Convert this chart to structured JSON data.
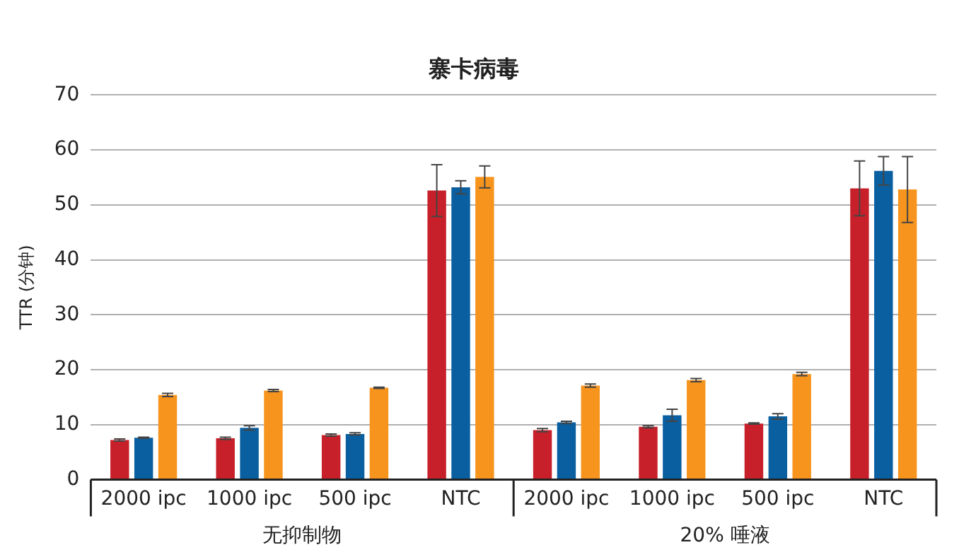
{
  "chart_data": {
    "type": "bar",
    "title": "寨卡病毒",
    "ylabel": "TTR (分钟)",
    "categories": [
      "2000 ipc",
      "1000 ipc",
      "500 ipc",
      "NTC",
      "2000 ipc",
      "1000 ipc",
      "500 ipc",
      "NTC"
    ],
    "series": [
      {
        "color": "#c8202a",
        "values": [
          7.2,
          7.5,
          8.1,
          52.6,
          9.0,
          9.6,
          10.2,
          53.0
        ],
        "errors": [
          0.2,
          0.2,
          0.2,
          4.7,
          0.3,
          0.2,
          0.1,
          5.0
        ]
      },
      {
        "color": "#0a5fa0",
        "values": [
          7.6,
          9.4,
          8.3,
          53.2,
          10.4,
          11.7,
          11.5,
          56.2
        ],
        "errors": [
          0.1,
          0.4,
          0.2,
          1.2,
          0.2,
          1.1,
          0.5,
          2.6
        ]
      },
      {
        "color": "#f7941d",
        "values": [
          15.4,
          16.2,
          16.7,
          55.1,
          17.1,
          18.1,
          19.2,
          52.8
        ],
        "errors": [
          0.3,
          0.2,
          0.1,
          2.0,
          0.3,
          0.3,
          0.3,
          6.0
        ]
      }
    ],
    "ylim": [
      0,
      70
    ],
    "yticks": [
      0,
      10,
      20,
      30,
      40,
      50,
      60,
      70
    ],
    "grid": "y",
    "legend": false,
    "annotations": [
      "无抑制物",
      "20% 唾液"
    ]
  }
}
